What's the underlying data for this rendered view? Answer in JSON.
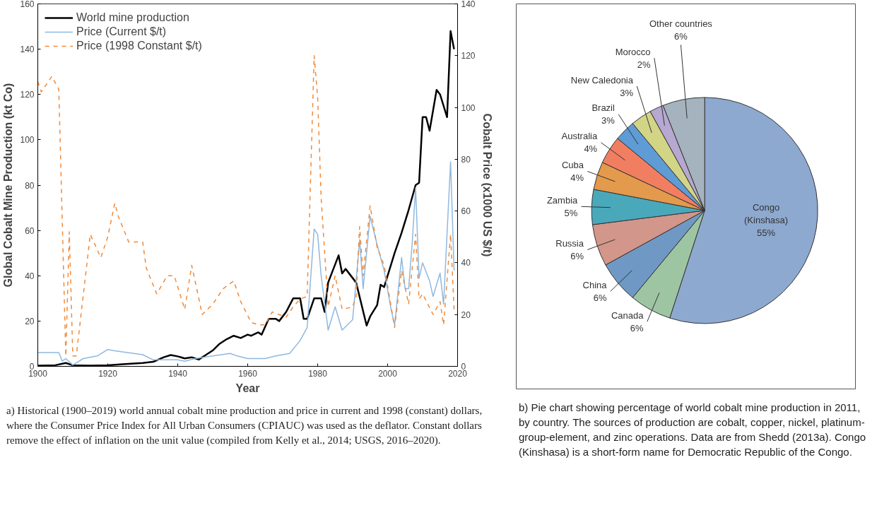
{
  "chart_data": [
    {
      "type": "line",
      "xlabel": "Year",
      "ylabel": "Global Cobalt Mine Production (kt Co)",
      "y2label": "Cobalt Price (x1000 US $/t)",
      "xlim": [
        1900,
        2020
      ],
      "xticks": [
        1900,
        1920,
        1940,
        1960,
        1980,
        2000,
        2020
      ],
      "ylim": [
        0,
        160
      ],
      "yticks": [
        0,
        20,
        40,
        60,
        80,
        100,
        120,
        140,
        160
      ],
      "y2lim": [
        0,
        140
      ],
      "y2ticks": [
        0,
        20,
        40,
        60,
        80,
        100,
        120,
        140
      ],
      "grid": false,
      "legend": "top left",
      "series": [
        {
          "name": "World mine production",
          "color": "#000000",
          "line_style": "solid",
          "x": [
            1900,
            1905,
            1908,
            1910,
            1915,
            1920,
            1925,
            1930,
            1933,
            1936,
            1938,
            1940,
            1942,
            1944,
            1946,
            1948,
            1950,
            1952,
            1954,
            1956,
            1958,
            1960,
            1961,
            1963,
            1964,
            1966,
            1968,
            1969,
            1971,
            1973,
            1975,
            1976,
            1977,
            1979,
            1981,
            1982,
            1983,
            1986,
            1987,
            1988,
            1991,
            1994,
            1995,
            1997,
            1998,
            1999,
            2000,
            2002,
            2004,
            2006,
            2008,
            2009,
            2010,
            2011,
            2012,
            2014,
            2015,
            2017,
            2018,
            2019
          ],
          "values": [
            0.3,
            0.5,
            1.5,
            0.5,
            0.3,
            0.5,
            1,
            1.5,
            2,
            4,
            5,
            4.4,
            3.5,
            4,
            3,
            5,
            7,
            10,
            12,
            13.5,
            12.5,
            14,
            13.5,
            15,
            14,
            21,
            21,
            20,
            24,
            30,
            30,
            21,
            21,
            30,
            30,
            24,
            37,
            49,
            41,
            43,
            37,
            18,
            22,
            27,
            36,
            35,
            40,
            50,
            59,
            69,
            80,
            81,
            110,
            110,
            104,
            122,
            120,
            110,
            148,
            140
          ]
        },
        {
          "name": "Price (Current $/t)",
          "color": "#8fb8e0",
          "line_style": "solid",
          "axis": "y2",
          "x": [
            1900,
            1906,
            1907,
            1908,
            1910,
            1913,
            1917,
            1920,
            1922,
            1930,
            1933,
            1940,
            1942,
            1945,
            1950,
            1955,
            1957,
            1960,
            1965,
            1968,
            1970,
            1972,
            1975,
            1977,
            1979,
            1980,
            1981,
            1983,
            1985,
            1987,
            1990,
            1991,
            1992,
            1993,
            1995,
            1997,
            1999,
            2001,
            2002,
            2004,
            2005,
            2006,
            2007,
            2008,
            2009,
            2010,
            2012,
            2013,
            2015,
            2016,
            2018,
            2019
          ],
          "values": [
            5.3,
            5.3,
            2,
            3,
            0.5,
            3,
            4,
            6.5,
            6,
            4.5,
            2.5,
            2.5,
            2,
            3,
            4,
            5,
            4,
            3,
            3,
            4,
            4.5,
            5,
            10,
            15,
            53,
            51,
            35,
            14,
            23,
            14,
            18,
            33,
            49,
            30,
            58,
            47,
            37,
            22,
            16,
            42,
            30,
            30,
            47,
            69,
            34,
            40,
            33,
            27,
            36,
            24,
            79,
            37
          ]
        },
        {
          "name": "Price (1998 Constant $/t)",
          "color": "#f08a3a",
          "line_style": "dashed",
          "axis": "y2",
          "x": [
            1900,
            1901,
            1904,
            1906,
            1908,
            1909,
            1910,
            1911,
            1915,
            1916,
            1918,
            1920,
            1922,
            1923,
            1926,
            1930,
            1931,
            1934,
            1937,
            1939,
            1942,
            1944,
            1947,
            1950,
            1953,
            1956,
            1958,
            1961,
            1963,
            1965,
            1967,
            1969,
            1971,
            1973,
            1975,
            1977,
            1979,
            1980,
            1981,
            1983,
            1985,
            1987,
            1990,
            1991,
            1992,
            1993,
            1995,
            1997,
            1999,
            2002,
            2004,
            2006,
            2008,
            2009,
            2010,
            2013,
            2015,
            2016,
            2018,
            2019
          ],
          "values": [
            110,
            106,
            112,
            107,
            4,
            52,
            4,
            4,
            51,
            48,
            42,
            50,
            63,
            58,
            48,
            48,
            38,
            28,
            35,
            35,
            22,
            39,
            20,
            24,
            30,
            33,
            25,
            17,
            16,
            16,
            21,
            20,
            19,
            23,
            26,
            27,
            120,
            104,
            65,
            23,
            35,
            22,
            23,
            27,
            54,
            35,
            62,
            46,
            39,
            15,
            37,
            24,
            51,
            26,
            28,
            20,
            25,
            16,
            51,
            22
          ]
        }
      ],
      "annotations": [
        "a)  Historical (1900–2019) world annual cobalt mine production and price in current and 1998 (constant) dollars, where the Consumer Price Index for All Urban Consumers (CPIAUC) was used as the deflator. Constant dollars remove the effect of inflation on the unit value (compiled from Kelly et al., 2014; USGS, 2016–2020)."
      ]
    },
    {
      "type": "pie",
      "categories": [
        "Congo (Kinshasa)",
        "Canada",
        "China",
        "Russia",
        "Zambia",
        "Cuba",
        "Australia",
        "Brazil",
        "New Caledonia",
        "Morocco",
        "Other countries"
      ],
      "values": [
        55,
        6,
        6,
        6,
        5,
        4,
        4,
        3,
        3,
        2,
        6
      ],
      "value_labels": [
        "55%",
        "6%",
        "6%",
        "6%",
        "5%",
        "4%",
        "4%",
        "3%",
        "3%",
        "2%",
        "6%"
      ],
      "colors": [
        "#8ea9d0",
        "#9ec5a2",
        "#6f99c4",
        "#d3968a",
        "#4aa8bb",
        "#e39a4c",
        "#f27e62",
        "#5f9bd5",
        "#d2d486",
        "#b6a8d0",
        "#a4b3bd"
      ],
      "annotations": [
        "b)  Pie chart showing percentage of world cobalt mine production in 2011, by country. The sources of production are cobalt, copper, nickel, platinum-group-element, and zinc operations. Data are from Shedd (2013a). Congo (Kinshasa) is a short-form name for Democratic Republic of the Congo."
      ]
    }
  ]
}
